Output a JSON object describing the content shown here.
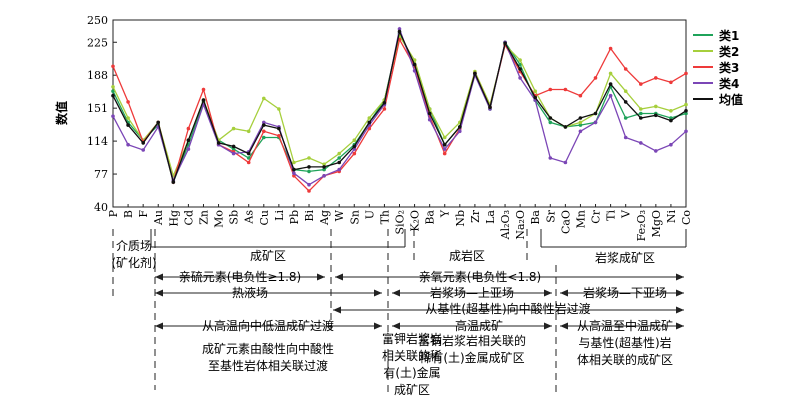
{
  "chart_data": {
    "type": "line",
    "title": "",
    "xlabel": "",
    "ylabel": "数值",
    "ylim": [
      40,
      250
    ],
    "yticks": [
      40,
      77,
      114,
      151,
      188,
      225,
      250
    ],
    "grid": false,
    "legend_position": "right",
    "categories": [
      "P",
      "B",
      "F",
      "Au",
      "Hg",
      "Cd",
      "Zn",
      "Mo",
      "Sb",
      "As",
      "Cu",
      "Li",
      "Pb",
      "Bi",
      "Ag",
      "W",
      "Sn",
      "U",
      "Th",
      "SiO₂",
      "K₂O",
      "Ba",
      "Y",
      "Nb",
      "Zr",
      "La",
      "Al₂O₃",
      "Na₂O",
      "Ba",
      "Sr",
      "CaO",
      "Mn",
      "Cr",
      "Ti",
      "V",
      "Fe₂O₃",
      "MgO",
      "Ni",
      "Co"
    ],
    "series": [
      {
        "name": "类1",
        "color": "#1fa35a",
        "values": [
          170,
          135,
          115,
          132,
          68,
          110,
          158,
          115,
          105,
          95,
          118,
          118,
          82,
          80,
          82,
          95,
          110,
          135,
          160,
          235,
          200,
          150,
          110,
          130,
          190,
          150,
          225,
          200,
          160,
          135,
          130,
          132,
          135,
          175,
          140,
          145,
          145,
          140,
          145
        ]
      },
      {
        "name": "类2",
        "color": "#a6cf3c",
        "values": [
          175,
          140,
          115,
          135,
          75,
          115,
          160,
          115,
          128,
          125,
          162,
          150,
          90,
          95,
          88,
          100,
          115,
          140,
          160,
          232,
          205,
          150,
          118,
          135,
          192,
          155,
          222,
          205,
          170,
          140,
          130,
          135,
          145,
          190,
          170,
          150,
          153,
          148,
          155
        ]
      },
      {
        "name": "类3",
        "color": "#ee3a3a",
        "values": [
          198,
          158,
          113,
          135,
          68,
          128,
          172,
          110,
          102,
          90,
          125,
          120,
          75,
          58,
          75,
          80,
          100,
          128,
          150,
          228,
          198,
          142,
          100,
          128,
          190,
          152,
          222,
          192,
          165,
          172,
          172,
          165,
          185,
          218,
          195,
          178,
          185,
          180,
          190
        ]
      },
      {
        "name": "类4",
        "color": "#7b46b6",
        "values": [
          142,
          110,
          104,
          130,
          70,
          105,
          155,
          110,
          100,
          102,
          135,
          130,
          78,
          65,
          75,
          82,
          105,
          132,
          155,
          240,
          193,
          138,
          105,
          125,
          188,
          150,
          225,
          185,
          160,
          95,
          90,
          125,
          135,
          165,
          118,
          112,
          103,
          110,
          125
        ]
      },
      {
        "name": "均值",
        "color": "#111111",
        "values": [
          165,
          132,
          112,
          135,
          68,
          115,
          160,
          112,
          108,
          100,
          132,
          128,
          82,
          85,
          85,
          90,
          108,
          135,
          157,
          237,
          200,
          145,
          110,
          130,
          190,
          152,
          224,
          195,
          163,
          140,
          130,
          140,
          145,
          178,
          158,
          140,
          143,
          137,
          148
        ]
      }
    ]
  },
  "annotations": {
    "row1": {
      "left": "介质场\n(矿化剂)",
      "a": "成矿区",
      "b": "成岩区",
      "c": "岩浆成矿区"
    },
    "row2": {
      "a": "亲硫元素(电负性≥1.8)",
      "b": "亲氧元素(电负性<1.8)"
    },
    "row3": {
      "a": "热液场",
      "b": "岩浆场—上亚场",
      "c": "岩浆场—下亚场"
    },
    "row4": {
      "a": "从基性(超基性)向中酸性岩过渡"
    },
    "row5": {
      "a": "从高温向中低温成矿过渡",
      "b": "高温成矿",
      "c": "从高温至中温成矿\n与基性(超基性)岩\n体相关联的成矿区"
    },
    "row6": {
      "a": "成矿元素由酸性向中酸性\n至基性岩体相关联过渡",
      "b": "富钾岩浆岩\n相关联的稀\n有(土)金属\n成矿区",
      "c": "富钠岩浆岩相关联的\n稀有(土)金属成矿区"
    }
  }
}
